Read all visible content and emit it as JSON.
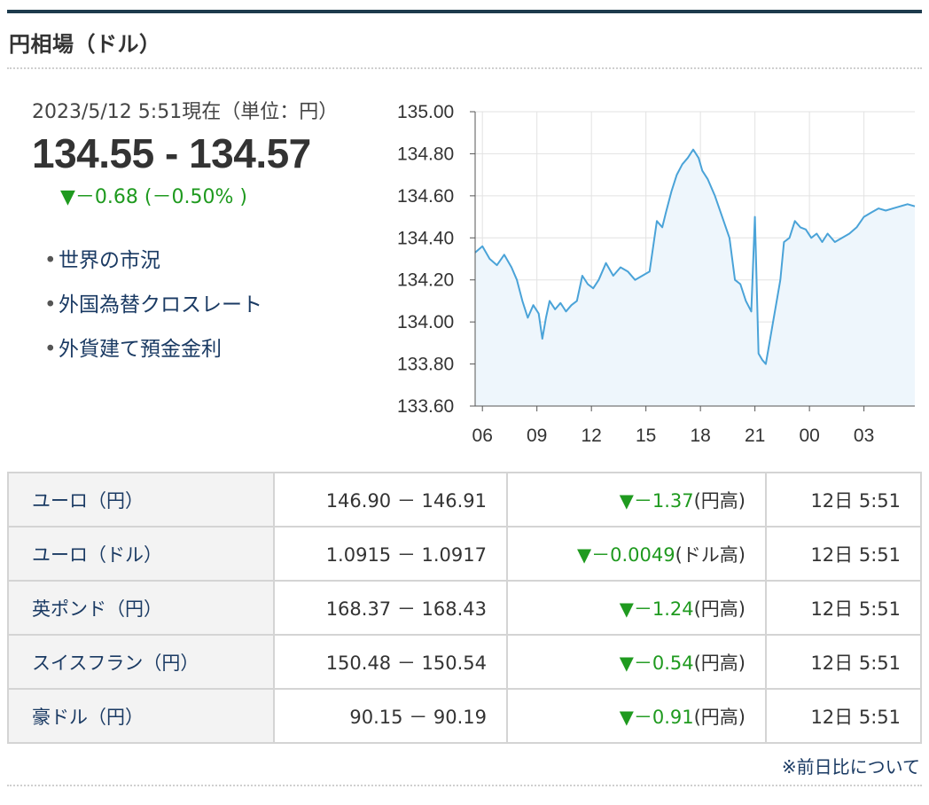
{
  "section": {
    "title": "円相場（ドル）"
  },
  "quote": {
    "as_of": "2023/5/12 5:51現在（単位：円）",
    "rate": "134.55 - 134.57",
    "change": "▼－0.68 (－0.50% )"
  },
  "links": [
    {
      "label": "世界の市況"
    },
    {
      "label": "外国為替クロスレート"
    },
    {
      "label": "外貨建て預金金利"
    }
  ],
  "colors": {
    "line": "#4aa3d8",
    "area": "#eef6fc",
    "down": "#1f9a1f",
    "link": "#1a3a63"
  },
  "chart_data": {
    "type": "area",
    "ylim": [
      133.6,
      135.0
    ],
    "y_ticks": [
      "135.00",
      "134.80",
      "134.60",
      "134.40",
      "134.20",
      "134.00",
      "133.80",
      "133.60"
    ],
    "x_ticks": [
      "06",
      "09",
      "12",
      "15",
      "18",
      "21",
      "00",
      "03"
    ],
    "x_tick_hours": [
      6,
      9,
      12,
      15,
      18,
      21,
      24,
      27
    ],
    "xlim": [
      5.6,
      29.8
    ],
    "x": [
      5.6,
      6.0,
      6.4,
      6.8,
      7.2,
      7.6,
      7.9,
      8.2,
      8.5,
      8.8,
      9.1,
      9.3,
      9.5,
      9.7,
      10.0,
      10.3,
      10.6,
      10.9,
      11.2,
      11.5,
      11.8,
      12.1,
      12.4,
      12.8,
      13.2,
      13.6,
      14.0,
      14.4,
      14.8,
      15.2,
      15.6,
      15.9,
      16.1,
      16.4,
      16.7,
      17.0,
      17.3,
      17.6,
      17.9,
      18.1,
      18.4,
      18.8,
      19.2,
      19.6,
      19.9,
      20.2,
      20.5,
      20.8,
      21.0,
      21.2,
      21.4,
      21.6,
      21.8,
      22.0,
      22.2,
      22.4,
      22.6,
      22.9,
      23.2,
      23.5,
      23.8,
      24.1,
      24.4,
      24.7,
      25.0,
      25.4,
      25.8,
      26.2,
      26.6,
      27.0,
      27.4,
      27.8,
      28.2,
      28.6,
      29.0,
      29.4,
      29.8
    ],
    "y": [
      134.33,
      134.36,
      134.3,
      134.27,
      134.32,
      134.26,
      134.2,
      134.1,
      134.02,
      134.08,
      134.04,
      133.92,
      134.02,
      134.1,
      134.06,
      134.09,
      134.05,
      134.08,
      134.1,
      134.22,
      134.18,
      134.16,
      134.2,
      134.28,
      134.22,
      134.26,
      134.24,
      134.2,
      134.22,
      134.24,
      134.48,
      134.45,
      134.52,
      134.62,
      134.7,
      134.75,
      134.78,
      134.82,
      134.78,
      134.72,
      134.68,
      134.6,
      134.5,
      134.4,
      134.2,
      134.18,
      134.1,
      134.05,
      134.5,
      133.85,
      133.82,
      133.8,
      133.9,
      134.0,
      134.1,
      134.2,
      134.38,
      134.4,
      134.48,
      134.45,
      134.44,
      134.4,
      134.42,
      134.38,
      134.42,
      134.38,
      134.4,
      134.42,
      134.45,
      134.5,
      134.52,
      134.54,
      134.53,
      134.54,
      134.55,
      134.56,
      134.55
    ]
  },
  "table": {
    "rows": [
      {
        "name": "ユーロ（円）",
        "value": "146.90 － 146.91",
        "change": "▼－1.37",
        "suffix": "(円高)",
        "time": "12日 5:51"
      },
      {
        "name": "ユーロ（ドル）",
        "value": "1.0915 － 1.0917",
        "change": "▼－0.0049",
        "suffix": "(ドル高)",
        "time": "12日 5:51"
      },
      {
        "name": "英ポンド（円）",
        "value": "168.37 － 168.43",
        "change": "▼－1.24",
        "suffix": "(円高)",
        "time": "12日 5:51"
      },
      {
        "name": "スイスフラン（円）",
        "value": "150.48 － 150.54",
        "change": "▼－0.54",
        "suffix": "(円高)",
        "time": "12日 5:51"
      },
      {
        "name": "豪ドル（円）",
        "value": "90.15 － 90.19",
        "change": "▼－0.91",
        "suffix": "(円高)",
        "time": "12日 5:51"
      }
    ]
  },
  "footnote": "※前日比について"
}
